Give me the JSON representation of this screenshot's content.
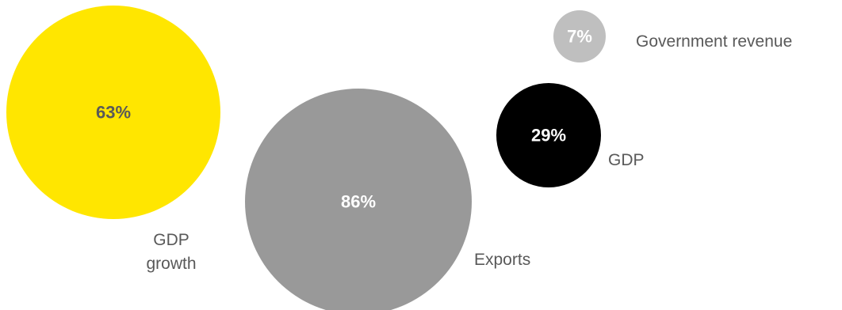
{
  "chart_data": {
    "type": "bubble",
    "series": [
      {
        "label": [
          "GDP",
          "growth"
        ],
        "value": 63,
        "value_label": "63%",
        "color": "#FFE600",
        "value_text_color": "#595959"
      },
      {
        "label": [
          "Exports"
        ],
        "value": 86,
        "value_label": "86%",
        "color": "#999999",
        "value_text_color": "#FFFFFF"
      },
      {
        "label": [
          "GDP"
        ],
        "value": 29,
        "value_label": "29%",
        "color": "#000000",
        "value_text_color": "#FFFFFF"
      },
      {
        "label": [
          "Government revenue"
        ],
        "value": 7,
        "value_label": "7%",
        "color": "#BFBFBF",
        "value_text_color": "#FFFFFF"
      }
    ]
  }
}
